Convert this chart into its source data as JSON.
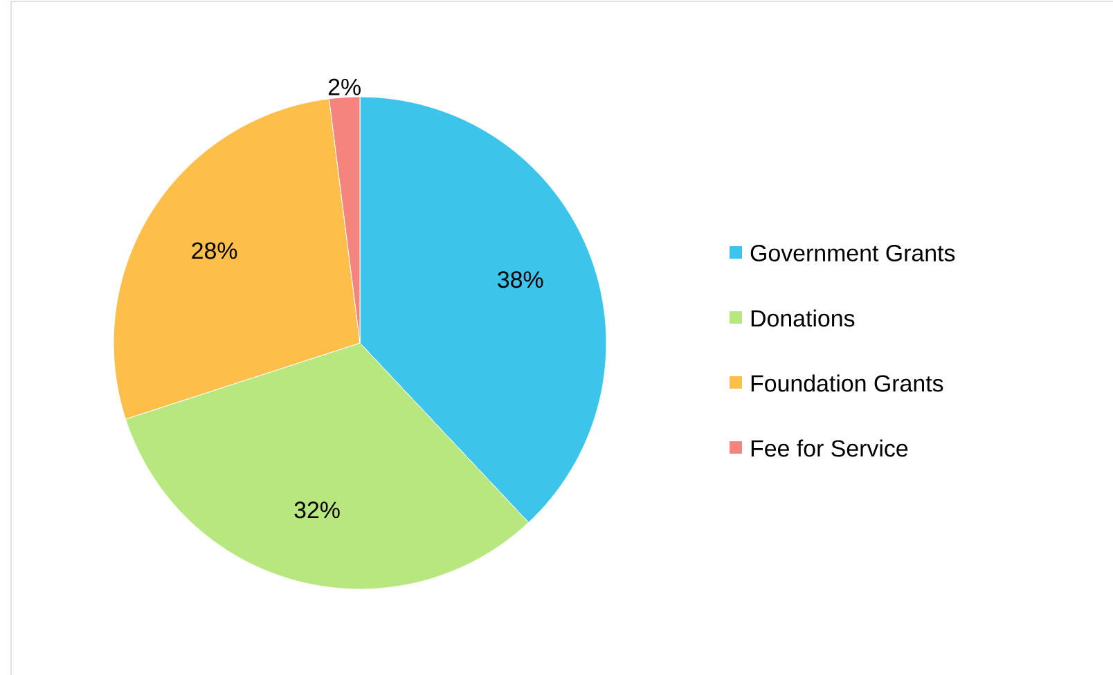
{
  "chart_data": {
    "type": "pie",
    "categories": [
      "Government Grants",
      "Donations",
      "Foundation Grants",
      "Fee for Service"
    ],
    "values": [
      38,
      32,
      28,
      2
    ],
    "colors": [
      "#3cc4ea",
      "#b9e77f",
      "#fdbf4a",
      "#f5847f"
    ],
    "value_labels": [
      "38%",
      "32%",
      "28%",
      "2%"
    ],
    "legend": "right"
  }
}
